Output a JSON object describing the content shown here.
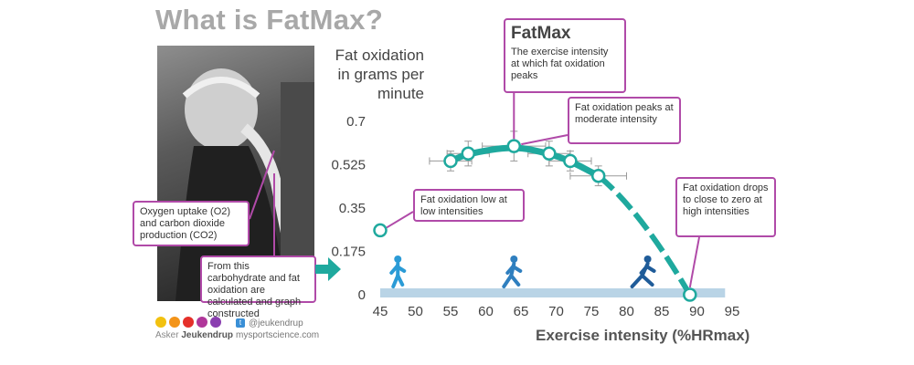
{
  "page": {
    "title": "What is FatMax?"
  },
  "callouts": {
    "fatmax_title": "FatMax",
    "fatmax_body": "The exercise intensity at which fat oxidation peaks",
    "peaks_moderate": "Fat oxidation peaks at moderate intensity",
    "low_intensity": "Fat oxidation low at low intensities",
    "drops_high": "Fat oxidation drops to close to zero at high intensities",
    "oxygen_uptake": "Oxygen uptake (O2) and carbon dioxide production (CO2)",
    "from_this": "From this carbohydrate and fat oxidation are calculated and graph constructed"
  },
  "footer": {
    "brand_name": "Asker",
    "brand_surname": "Jeukendrup",
    "twitter": "@jeukendrup",
    "website": "mysportscience.com",
    "dot_colors": [
      "#f2c10f",
      "#f39419",
      "#e5302a",
      "#b0379a",
      "#8a3fb0"
    ]
  },
  "icons": {
    "twitter": "twitter-icon",
    "walker": "walking-figure-icon",
    "jogger": "jogging-figure-icon",
    "runner": "running-figure-icon",
    "arrow": "right-arrow-icon"
  },
  "colors": {
    "curve": "#1fa99e",
    "marker_edge": "#1fa99e",
    "callout_border": "#b04aa8",
    "intensity_band": "#b9d4e6",
    "figure_light": "#2b9bd6",
    "figure_mid": "#2f7fbf",
    "figure_dark": "#1f5c99"
  },
  "chart_data": {
    "type": "line",
    "title": "",
    "xlabel": "Exercise intensity (%HRmax)",
    "ylabel": "Fat oxidation in grams per minute",
    "xlim": [
      45,
      95
    ],
    "ylim": [
      0,
      0.7
    ],
    "x_ticks": [
      "45",
      "50",
      "55",
      "60",
      "65",
      "70",
      "75",
      "80",
      "85",
      "90",
      "95"
    ],
    "y_ticks": [
      "0",
      "0.175",
      "0.35",
      "0.525",
      "0.7"
    ],
    "grid": false,
    "series": [
      {
        "values": [
          {
            "x": 55.0,
            "y": 0.54,
            "xerr": 3.0,
            "yerr": 0.04
          },
          {
            "x": 57.5,
            "y": 0.57,
            "xerr": 3.0,
            "yerr": 0.05
          },
          {
            "x": 64.0,
            "y": 0.6,
            "xerr": 4.5,
            "yerr": 0.06
          },
          {
            "x": 69.0,
            "y": 0.57,
            "xerr": 3.0,
            "yerr": 0.05
          },
          {
            "x": 72.0,
            "y": 0.54,
            "xerr": 3.0,
            "yerr": 0.04
          },
          {
            "x": 76.0,
            "y": 0.48,
            "xerr": 4.0,
            "yerr": 0.04
          },
          {
            "x": 89.0,
            "y": 0.0,
            "xerr": 0,
            "yerr": 0
          }
        ]
      }
    ],
    "extra_points": [
      {
        "x": 45.0,
        "y": 0.26
      }
    ]
  }
}
